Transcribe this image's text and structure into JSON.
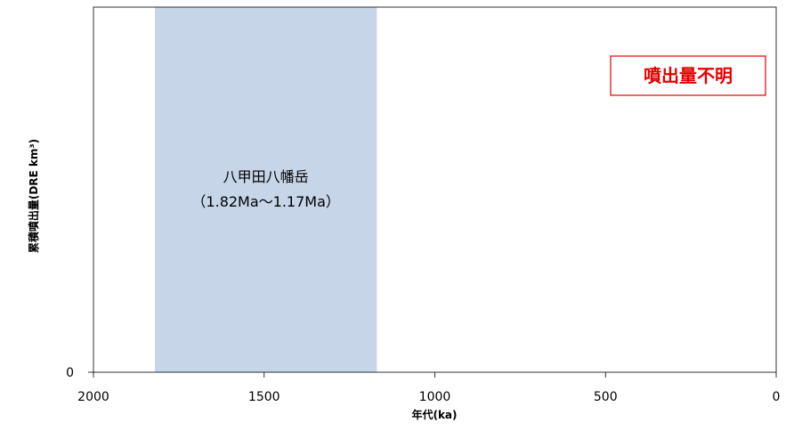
{
  "chart_data": {
    "type": "area",
    "title": "",
    "xlabel": "年代(ka)",
    "ylabel": "累積噴出量(DRE km³)",
    "xlim": [
      2000,
      0
    ],
    "x_reversed": true,
    "x_ticks": [
      2000,
      1500,
      1000,
      500,
      0
    ],
    "y_ticks": [
      0
    ],
    "grid": false,
    "series": [],
    "regions": [
      {
        "name": "八甲田八幡岳",
        "range_label": "（1.82Ma～1.17Ma）",
        "x_start": 1820,
        "x_end": 1170,
        "color": "#c6d5e8"
      }
    ],
    "annotations": [
      {
        "text": "噴出量不明",
        "color": "#e60000"
      }
    ]
  }
}
